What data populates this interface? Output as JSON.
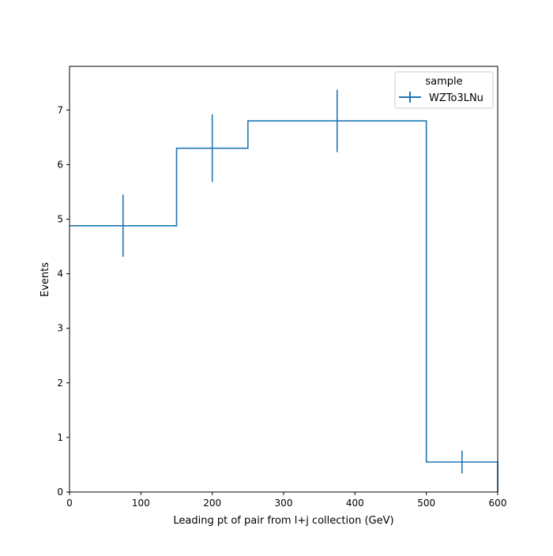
{
  "chart_data": {
    "type": "step",
    "xlabel": "Leading pt of pair from l+j collection (GeV)",
    "ylabel": "Events",
    "xlim": [
      0,
      600
    ],
    "ylim": [
      0,
      7.8
    ],
    "x_ticks": [
      0,
      100,
      200,
      300,
      400,
      500,
      600
    ],
    "y_ticks": [
      0,
      1,
      2,
      3,
      4,
      5,
      6,
      7
    ],
    "x_tick_labels": [
      "0",
      "100",
      "200",
      "300",
      "400",
      "500",
      "600"
    ],
    "y_tick_labels": [
      "0",
      "1",
      "2",
      "3",
      "4",
      "5",
      "6",
      "7"
    ],
    "bin_edges": [
      0,
      150,
      250,
      500,
      600
    ],
    "grid": false,
    "legend": {
      "title": "sample",
      "position": "top-right",
      "entries": [
        "WZTo3LNu"
      ]
    },
    "series": [
      {
        "name": "WZTo3LNu",
        "color": "#1f77b4",
        "values": [
          4.88,
          6.3,
          6.8,
          0.55
        ],
        "errors": [
          0.57,
          0.62,
          0.57,
          0.21
        ]
      }
    ]
  }
}
